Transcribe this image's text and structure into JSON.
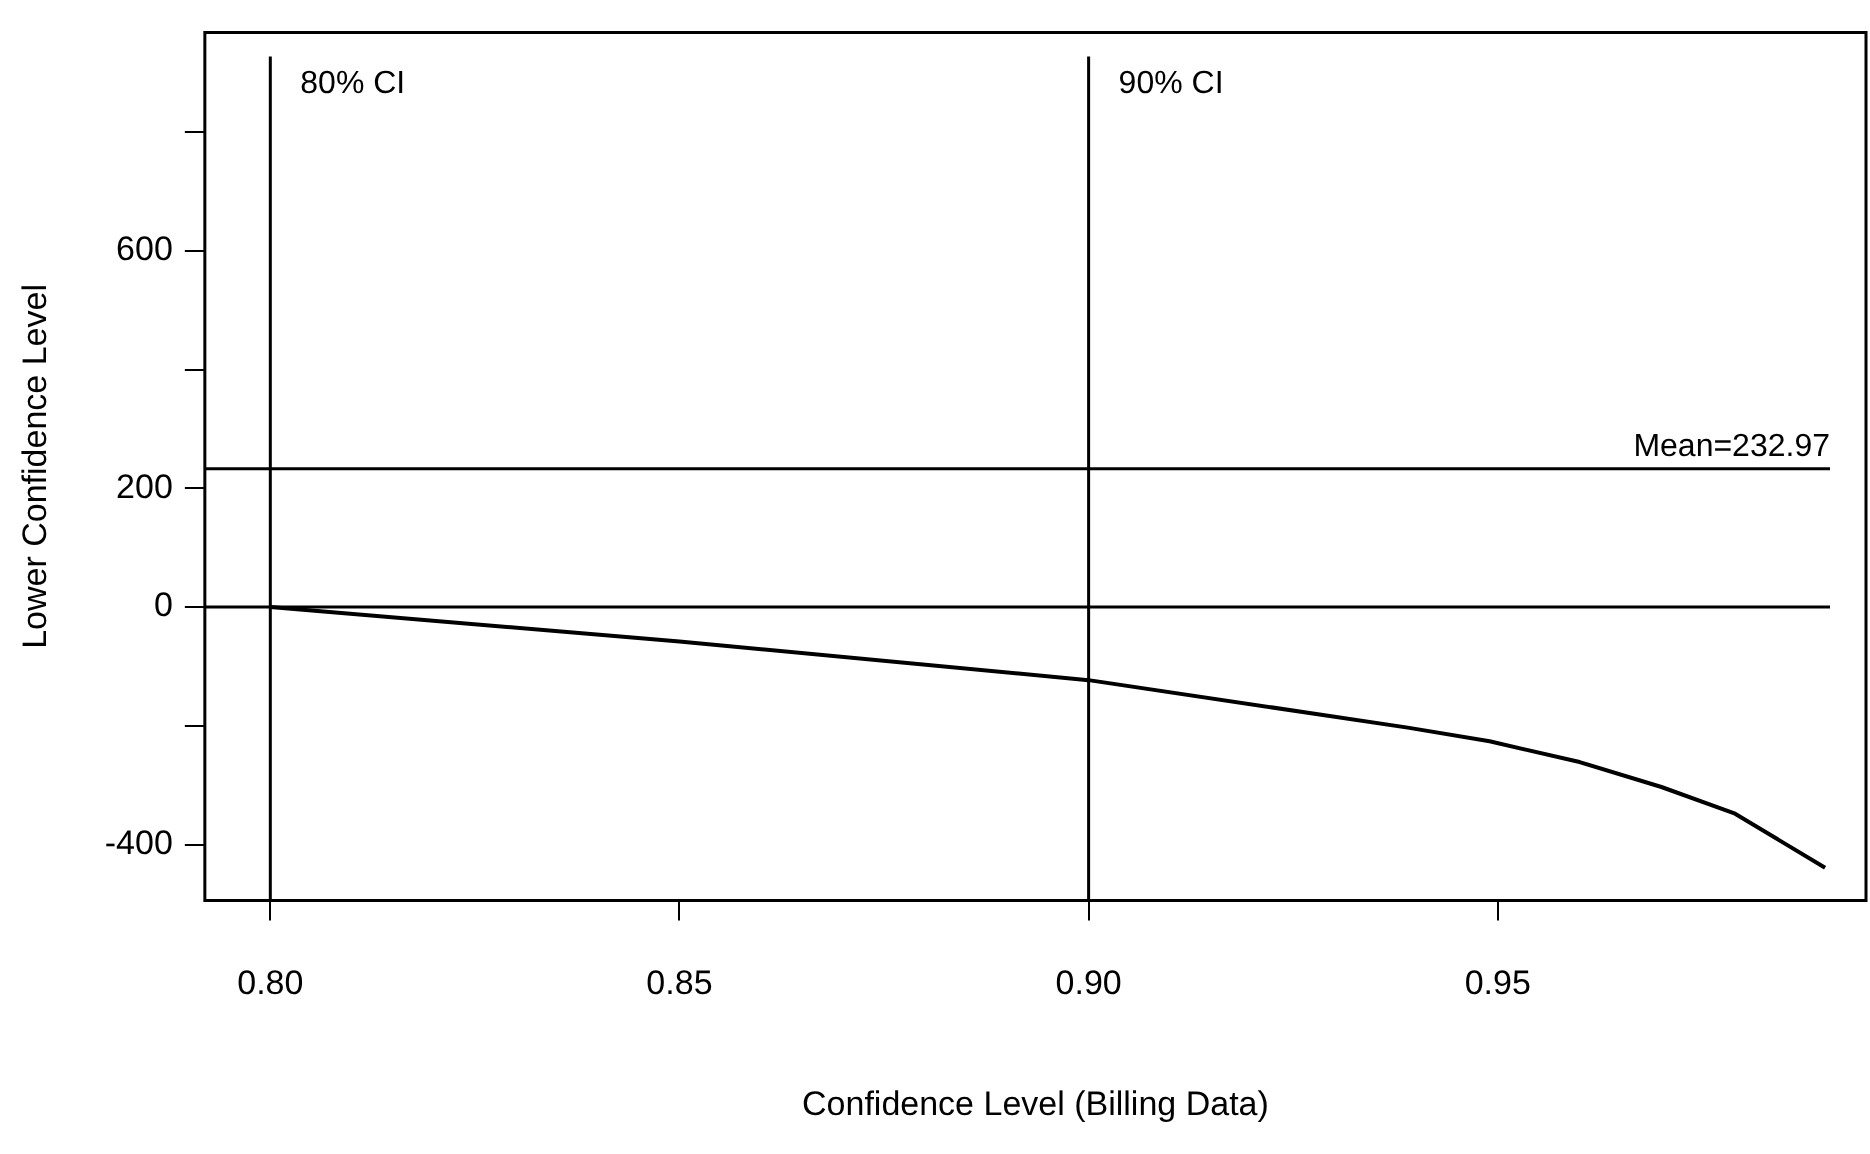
{
  "chart_data": {
    "type": "line",
    "xlabel": "Confidence Level (Billing Data)",
    "ylabel": "Lower Confidence Level",
    "x": [
      0.8,
      0.85,
      0.9,
      0.939,
      0.949,
      0.96,
      0.97,
      0.979,
      0.99
    ],
    "series": [
      {
        "color": "#000000",
        "values": [
          0,
          -58,
          -123,
          -203,
          -226,
          -261,
          -303,
          -348,
          -439
        ]
      }
    ],
    "xlim": [
      0.792,
      0.995
    ],
    "xticks": [
      {
        "value": 0.8,
        "label": "0.80"
      },
      0.85,
      {
        "value": 0.9,
        "label": "0.90"
      },
      0.95
    ],
    "ylim": [
      -494,
      968
    ],
    "yticks": [
      {
        "value": -400,
        "label": "-400"
      },
      {
        "value": -200,
        "label": null
      },
      {
        "value": 0,
        "label": "0"
      },
      {
        "value": 200,
        "label": "200"
      },
      {
        "value": 400,
        "label": null
      },
      {
        "value": 600,
        "label": "600"
      },
      {
        "value": 800,
        "label": null
      }
    ],
    "ref_lines": [
      {
        "axis": "x",
        "value": 0.8,
        "label": "80% CI"
      },
      {
        "axis": "x",
        "value": 0.9,
        "label": "90% CI"
      },
      {
        "axis": "y",
        "value": 232.97,
        "label": "Mean=232.97"
      },
      {
        "axis": "y",
        "value": 0,
        "label": null
      }
    ],
    "grid": false,
    "legend": false,
    "marker": "none",
    "line_style": "solid"
  }
}
